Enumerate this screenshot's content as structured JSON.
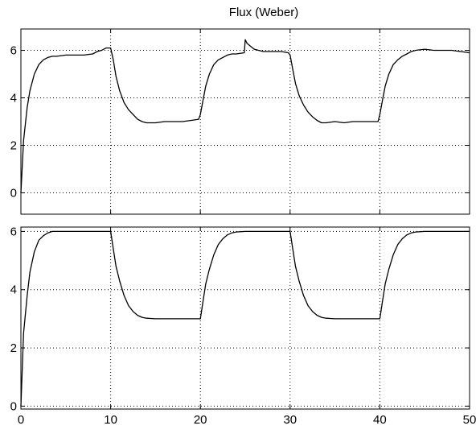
{
  "chart_data": [
    {
      "type": "line",
      "title": "Flux (Weber)",
      "xlabel": "",
      "ylabel": "",
      "xlim": [
        0,
        50
      ],
      "ylim": [
        -0.9,
        6.9
      ],
      "xticks": [
        0,
        10,
        20,
        30,
        40,
        50
      ],
      "yticks": [
        0,
        2,
        4,
        6
      ],
      "show_xtick_labels": false,
      "grid": true,
      "series": [
        {
          "x": [
            0,
            0.3,
            0.7,
            1,
            1.5,
            2,
            2.5,
            3,
            3.5,
            4,
            5,
            6,
            7,
            8,
            8.5,
            9,
            9.5,
            10,
            10.3,
            10.6,
            11,
            11.5,
            12,
            12.5,
            13,
            13.5,
            14,
            15,
            16,
            17,
            18,
            19,
            19.8,
            20,
            20.3,
            20.6,
            21,
            21.5,
            22,
            22.5,
            23,
            23.5,
            24,
            24.9,
            25,
            25.2,
            25.5,
            26,
            27,
            28,
            29,
            29.8,
            30,
            30.3,
            30.6,
            31,
            31.5,
            32,
            32.5,
            33,
            33.5,
            34,
            35,
            36,
            37,
            38,
            39,
            39.8,
            40,
            40.3,
            40.6,
            41,
            41.5,
            42,
            42.5,
            43,
            43.5,
            44,
            45,
            46,
            47,
            48,
            49,
            50
          ],
          "values": [
            0,
            2.2,
            3.6,
            4.3,
            5.0,
            5.4,
            5.6,
            5.7,
            5.75,
            5.75,
            5.8,
            5.8,
            5.8,
            5.85,
            5.95,
            6.0,
            6.1,
            6.1,
            5.6,
            4.9,
            4.3,
            3.8,
            3.5,
            3.3,
            3.1,
            3.0,
            2.95,
            2.95,
            3.0,
            3.0,
            3.0,
            3.05,
            3.1,
            3.3,
            3.9,
            4.5,
            5.0,
            5.4,
            5.6,
            5.7,
            5.8,
            5.85,
            5.85,
            5.9,
            6.45,
            6.3,
            6.2,
            6.05,
            5.95,
            5.95,
            5.95,
            5.9,
            5.8,
            5.2,
            4.6,
            4.1,
            3.7,
            3.4,
            3.2,
            3.05,
            2.95,
            2.95,
            3.0,
            2.95,
            3.0,
            3.0,
            3.0,
            3.0,
            3.3,
            3.9,
            4.5,
            5.0,
            5.4,
            5.6,
            5.75,
            5.85,
            5.95,
            6.0,
            6.05,
            6.0,
            6.0,
            6.0,
            5.95,
            5.9
          ]
        }
      ]
    },
    {
      "type": "line",
      "title": "",
      "xlabel": "",
      "ylabel": "",
      "xlim": [
        0,
        50
      ],
      "ylim": [
        -0.1,
        6.15
      ],
      "xticks": [
        0,
        10,
        20,
        30,
        40,
        50
      ],
      "yticks": [
        0,
        2,
        4,
        6
      ],
      "show_xtick_labels": true,
      "grid": true,
      "series": [
        {
          "x": [
            0,
            0.3,
            0.7,
            1,
            1.5,
            2,
            2.5,
            3,
            3.5,
            4,
            5,
            6,
            7,
            8,
            9,
            10,
            10.3,
            10.6,
            11,
            11.5,
            12,
            12.5,
            13,
            13.5,
            14,
            15,
            16,
            17,
            18,
            19,
            20,
            20.3,
            20.6,
            21,
            21.5,
            22,
            22.5,
            23,
            23.5,
            24,
            25,
            26,
            27,
            28,
            29,
            30,
            30.3,
            30.6,
            31,
            31.5,
            32,
            32.5,
            33,
            33.5,
            34,
            35,
            36,
            37,
            38,
            39,
            40,
            40.3,
            40.6,
            41,
            41.5,
            42,
            42.5,
            43,
            43.5,
            44,
            45,
            46,
            47,
            48,
            49,
            50
          ],
          "values": [
            0,
            2.5,
            3.8,
            4.6,
            5.3,
            5.7,
            5.85,
            5.95,
            6.0,
            6.0,
            6.0,
            6.0,
            6.0,
            6.0,
            6.0,
            6.0,
            5.4,
            4.8,
            4.3,
            3.8,
            3.45,
            3.25,
            3.12,
            3.05,
            3.02,
            3.0,
            3.0,
            3.0,
            3.0,
            3.0,
            3.0,
            3.6,
            4.2,
            4.7,
            5.2,
            5.55,
            5.75,
            5.88,
            5.95,
            5.98,
            6.0,
            6.0,
            6.0,
            6.0,
            6.0,
            6.0,
            5.4,
            4.8,
            4.3,
            3.8,
            3.45,
            3.25,
            3.12,
            3.05,
            3.02,
            3.0,
            3.0,
            3.0,
            3.0,
            3.0,
            3.0,
            3.6,
            4.2,
            4.7,
            5.2,
            5.55,
            5.75,
            5.88,
            5.95,
            5.98,
            6.0,
            6.0,
            6.0,
            6.0,
            6.0,
            6.0
          ]
        }
      ]
    }
  ]
}
